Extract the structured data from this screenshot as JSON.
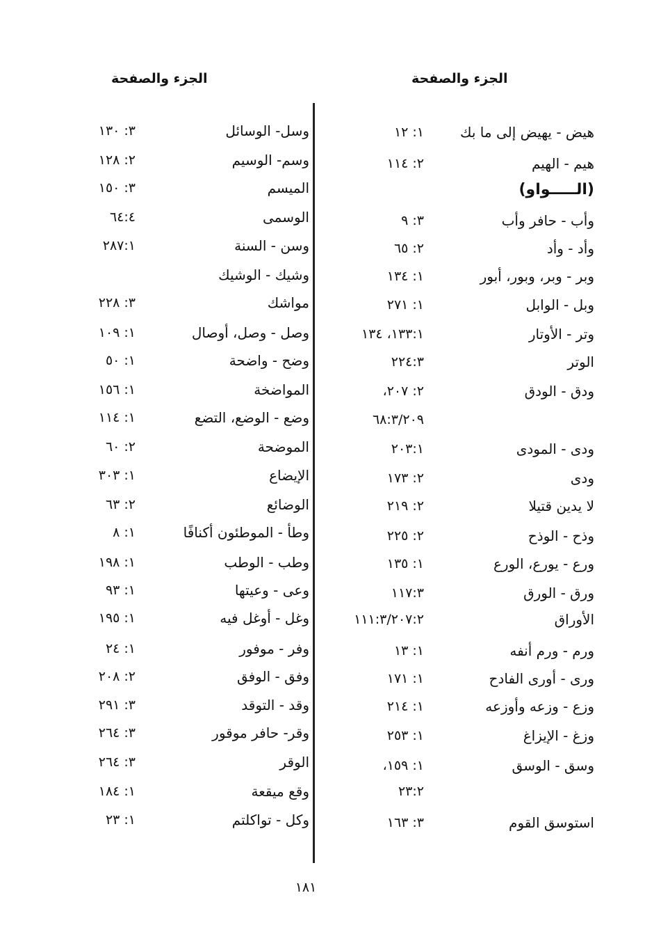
{
  "headers": {
    "right": "الجزء والصفحة",
    "left": "الجزء والصفحة"
  },
  "right_column": [
    {
      "term": "هيض - يهيض إلى ما بك",
      "ref": "١٢ :١"
    },
    {
      "term": "هيم - الهيم",
      "ref": "١١٤ :٢"
    },
    {
      "term": "(الـــــواو)",
      "ref": "",
      "section": true
    },
    {
      "term": "وأب - حافر وأب",
      "ref": "٩ :٣"
    },
    {
      "term": "وأد - وأد",
      "ref": "٦٥ :٢"
    },
    {
      "term": "وبر - وبر، وبور، أبور",
      "ref": "١٣٤ :١"
    },
    {
      "term": "وبل - الوابل",
      "ref": "٢٧١ :١"
    },
    {
      "term": "وتر - الأوتار",
      "ref": "١٣٤ ،١٣٣:١"
    },
    {
      "term": "الوتر",
      "ref": "٢٢٤:٣"
    },
    {
      "term": "ودق - الودق",
      "ref": "،٢٠٧ :٢"
    },
    {
      "term": "",
      "ref": "٦٨:٣/٢٠٩"
    },
    {
      "term": "ودى - المودى",
      "ref": "٢٠٣:١"
    },
    {
      "term": "ودى",
      "ref": "١٧٣ :٢"
    },
    {
      "term": "لا يدين قتيلا",
      "ref": "٢١٩ :٢"
    },
    {
      "term": "وذح - الوذح",
      "ref": "٢٢٥ :٢"
    },
    {
      "term": "ورع - يورع، الورع",
      "ref": "١٣٥ :١"
    },
    {
      "term": "ورق - الورق",
      "ref": "١١٧:٣"
    },
    {
      "term": "الأوراق",
      "ref": "١١١:٣/٢٠٧:٢"
    },
    {
      "term": "ورم - ورم أنفه",
      "ref": "١٣ :١"
    },
    {
      "term": "ورى - أورى الفادح",
      "ref": "١٧١ :١"
    },
    {
      "term": "وزع - وزعه وأوزعه",
      "ref": "٢١٤ :١"
    },
    {
      "term": "وزغ - الإيزاغ",
      "ref": "٢٥٣ :١"
    },
    {
      "term": "وسق - الوسق",
      "ref": "،١٥٩ :١"
    },
    {
      "term": "",
      "ref": "٢٣:٢"
    },
    {
      "term": "استوسق القوم",
      "ref": "١٦٣ :٣"
    }
  ],
  "left_column": [
    {
      "term": "وسل- الوسائل",
      "ref": "١٣٠ :٣"
    },
    {
      "term": "وسم- الوسيم",
      "ref": "١٢٨ :٢"
    },
    {
      "term": "الميسم",
      "ref": "١٥٠ :٣"
    },
    {
      "term": "الوسمى",
      "ref": "٦٤:٤"
    },
    {
      "term": "وسن - السنة",
      "ref": "٢٨٧:١"
    },
    {
      "term": "وشيك - الوشيك",
      "ref": ""
    },
    {
      "term": "مواشك",
      "ref": "٢٢٨ :٣"
    },
    {
      "term": "وصل - وصل، أوصال",
      "ref": "١٠٩ :١"
    },
    {
      "term": "وضح - واضحة",
      "ref": "٥٠ :١"
    },
    {
      "term": "المواضخة",
      "ref": "١٥٦ :١"
    },
    {
      "term": "وضع - الوضع، التضع",
      "ref": "١١٤ :١"
    },
    {
      "term": "الموضحة",
      "ref": "٦٠ :٢"
    },
    {
      "term": "الإيضاع",
      "ref": "٣٠٣ :١"
    },
    {
      "term": "الوضائع",
      "ref": "٦٣ :٢"
    },
    {
      "term": "وطأ - الموطئون أكنافًا",
      "ref": "٨ :١"
    },
    {
      "term": "وطب - الوطب",
      "ref": "١٩٨ :١"
    },
    {
      "term": "وعى - وعيتها",
      "ref": "٩٣ :١"
    },
    {
      "term": "وغل - أوغل فيه",
      "ref": "١٩٥ :١"
    },
    {
      "term": "وفر - موفور",
      "ref": "٢٤ :١"
    },
    {
      "term": "وفق - الوفق",
      "ref": "٢٠٨ :٢"
    },
    {
      "term": "وقد - التوقد",
      "ref": "٢٩١ :٣"
    },
    {
      "term": "وقر- حافر موقور",
      "ref": "٢٦٤ :٣"
    },
    {
      "term": "الوقر",
      "ref": "٢٦٤ :٣"
    },
    {
      "term": "وقع ميقعة",
      "ref": "١٨٤ :١"
    },
    {
      "term": "وكل - تواكلتم",
      "ref": "٢٣ :١"
    }
  ],
  "page_number": "١٨١"
}
